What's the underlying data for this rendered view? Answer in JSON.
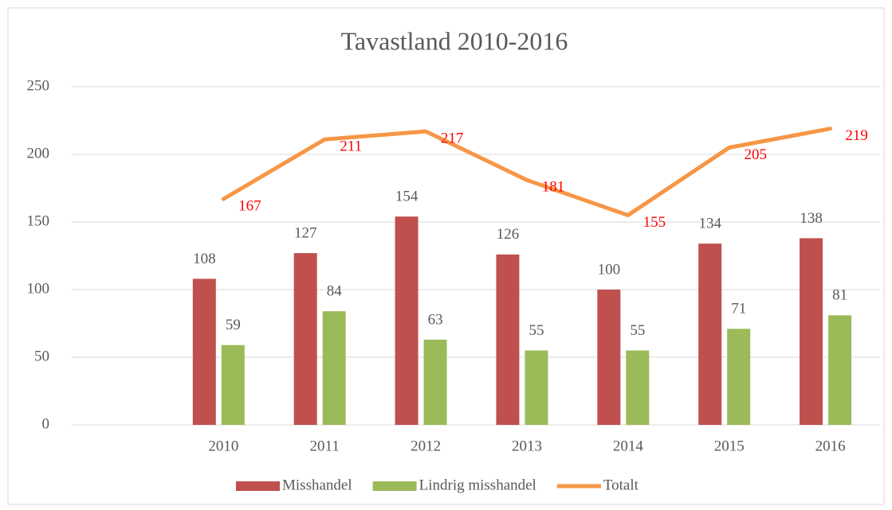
{
  "chart_data": {
    "type": "bar-line",
    "title": "Tavastland 2010-2016",
    "categories": [
      null,
      "2010",
      "2011",
      "2012",
      "2013",
      "2014",
      "2015",
      "2016"
    ],
    "series": [
      {
        "name": "Misshandel",
        "type": "bar",
        "color": "#c0504d",
        "values": [
          null,
          108,
          127,
          154,
          126,
          100,
          134,
          138
        ]
      },
      {
        "name": "Lindrig misshandel",
        "type": "bar",
        "color": "#9bbb59",
        "values": [
          null,
          59,
          84,
          63,
          55,
          55,
          71,
          81
        ]
      },
      {
        "name": "Totalt",
        "type": "line",
        "color": "#f79646",
        "label_color": "#ff0000",
        "values": [
          null,
          167,
          211,
          217,
          181,
          155,
          205,
          219
        ]
      }
    ],
    "ylim": [
      0,
      250
    ],
    "yticks": [
      0,
      50,
      100,
      150,
      200,
      250
    ],
    "grid": true,
    "legend": "bottom"
  }
}
